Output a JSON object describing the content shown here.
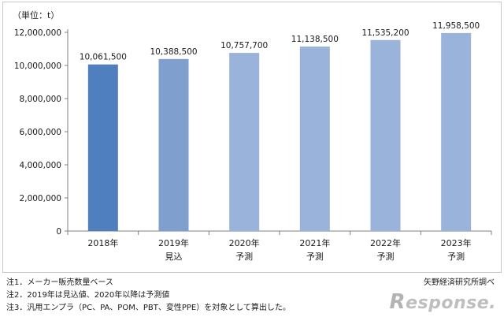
{
  "chart_data": {
    "type": "bar",
    "unit_label": "（単位：t）",
    "categories": [
      "2018年",
      "2019年",
      "2020年",
      "2021年",
      "2022年",
      "2023年"
    ],
    "sublabels": [
      "",
      "見込",
      "予測",
      "予測",
      "予測",
      "予測"
    ],
    "values": [
      10061500,
      10388500,
      10757700,
      11138500,
      11535200,
      11958500
    ],
    "value_labels": [
      "10,061,500",
      "10,388,500",
      "10,757,700",
      "11,138,500",
      "11,535,200",
      "11,958,500"
    ],
    "yticks": [
      0,
      2000000,
      4000000,
      6000000,
      8000000,
      10000000,
      12000000
    ],
    "ytick_labels": [
      "0",
      "2,000,000",
      "4,000,000",
      "6,000,000",
      "8,000,000",
      "10,000,000",
      "12,000,000"
    ],
    "ylim": [
      0,
      12000000
    ],
    "grid": false,
    "bar_colors": [
      "#4f7fbe",
      "#7f9fcf",
      "#9ab3db",
      "#9ab3db",
      "#9ab3db",
      "#9ab3db"
    ],
    "axis_color": "#808080"
  },
  "notes": [
    "注1．メーカー販売数量ベース",
    "注2．2019年は見込値、2020年以降は予測値",
    "注3．汎用エンプラ（PC、PA、POM、PBT、変性PPE）を対象として算出した。"
  ],
  "source": "矢野経済研究所調べ",
  "watermark": "Response."
}
